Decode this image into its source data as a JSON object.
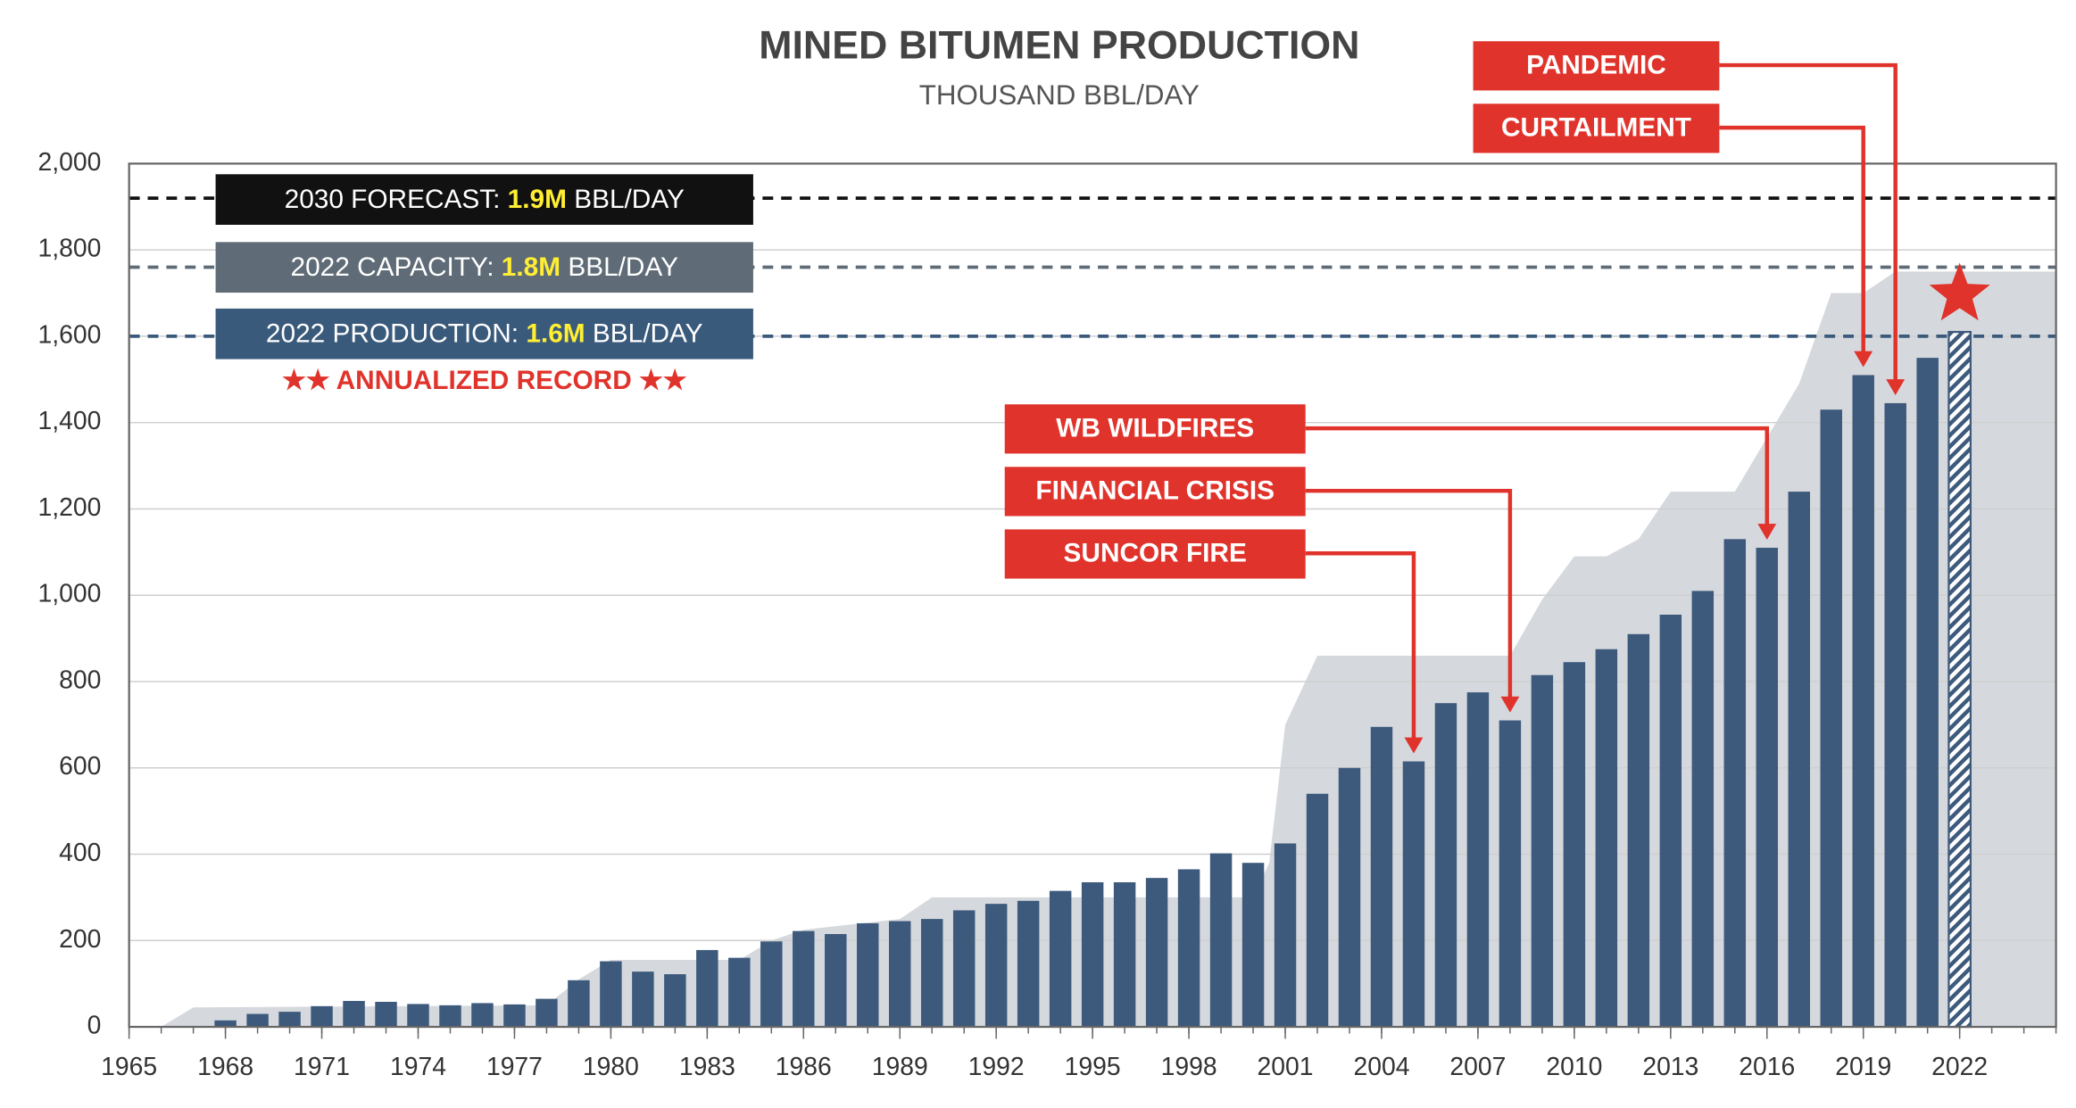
{
  "chart_data": {
    "type": "bar",
    "title": "MINED BITUMEN PRODUCTION",
    "subtitle": "THOUSAND BBL/DAY",
    "x": [
      1968,
      1969,
      1970,
      1971,
      1972,
      1973,
      1974,
      1975,
      1976,
      1977,
      1978,
      1979,
      1980,
      1981,
      1982,
      1983,
      1984,
      1985,
      1986,
      1987,
      1988,
      1989,
      1990,
      1991,
      1992,
      1993,
      1994,
      1995,
      1996,
      1997,
      1998,
      1999,
      2000,
      2001,
      2002,
      2003,
      2004,
      2005,
      2006,
      2007,
      2008,
      2009,
      2010,
      2011,
      2012,
      2013,
      2014,
      2015,
      2016,
      2017,
      2018,
      2019,
      2020,
      2021,
      2022
    ],
    "values": [
      15,
      30,
      35,
      48,
      60,
      58,
      53,
      50,
      55,
      52,
      65,
      108,
      152,
      128,
      122,
      178,
      160,
      198,
      222,
      215,
      240,
      245,
      250,
      270,
      285,
      292,
      315,
      335,
      335,
      345,
      365,
      402,
      380,
      425,
      540,
      600,
      695,
      615,
      750,
      775,
      710,
      815,
      845,
      875,
      910,
      955,
      1010,
      1130,
      1110,
      1240,
      1430,
      1510,
      1445,
      1550,
      1610
    ],
    "color": "#3d5a7c",
    "hatched_x": [
      2022
    ],
    "capacity": {
      "color": "#d5d9de",
      "x": [
        1966,
        1967,
        1978,
        1979,
        1980,
        1984,
        1985,
        1986,
        1989,
        1990,
        2000,
        2000.5,
        2001,
        2002,
        2008,
        2009,
        2010,
        2011,
        2012,
        2013,
        2015,
        2017,
        2018,
        2019,
        2020,
        2025
      ],
      "values": [
        0,
        45,
        50,
        110,
        155,
        155,
        200,
        225,
        250,
        300,
        300,
        380,
        700,
        860,
        860,
        990,
        1090,
        1090,
        1130,
        1240,
        1240,
        1490,
        1700,
        1700,
        1750,
        1750
      ]
    },
    "xlim": [
      1965,
      2025
    ],
    "xticks": [
      1965,
      1968,
      1971,
      1974,
      1977,
      1980,
      1983,
      1986,
      1989,
      1992,
      1995,
      1998,
      2001,
      2004,
      2007,
      2010,
      2013,
      2016,
      2019,
      2022
    ],
    "ylim": [
      0,
      2000
    ],
    "yticks": [
      0,
      200,
      400,
      600,
      800,
      {
        "value": 1000,
        "label": "1,000"
      },
      {
        "value": 1200,
        "label": "1,200"
      },
      {
        "value": 1400,
        "label": "1,400"
      },
      {
        "value": 1600,
        "label": "1,600"
      },
      {
        "value": 1800,
        "label": "1,800"
      },
      {
        "value": 2000,
        "label": "2,000"
      }
    ],
    "grid": true,
    "reference_lines": [
      {
        "value": 1920,
        "color": "#111111",
        "prefix": "2030 FORECAST: ",
        "highlight": "1.9M",
        "suffix": " BBL/DAY"
      },
      {
        "value": 1760,
        "color": "#5f6b76",
        "prefix": "2022 CAPACITY: ",
        "highlight": "1.8M",
        "suffix": " BBL/DAY"
      },
      {
        "value": 1600,
        "color": "#3a5a7c",
        "prefix": "2022 PRODUCTION: ",
        "highlight": "1.6M",
        "suffix": " BBL/DAY"
      }
    ],
    "record_note": "★★ ANNUALIZED RECORD ★★",
    "annotations": [
      {
        "label": "PANDEMIC",
        "target": 2020
      },
      {
        "label": "CURTAILMENT",
        "target": 2019
      },
      {
        "label": "WB WILDFIRES",
        "target": 2016
      },
      {
        "label": "FINANCIAL CRISIS",
        "target": 2008
      },
      {
        "label": "SUNCOR FIRE",
        "target": 2005
      }
    ]
  }
}
